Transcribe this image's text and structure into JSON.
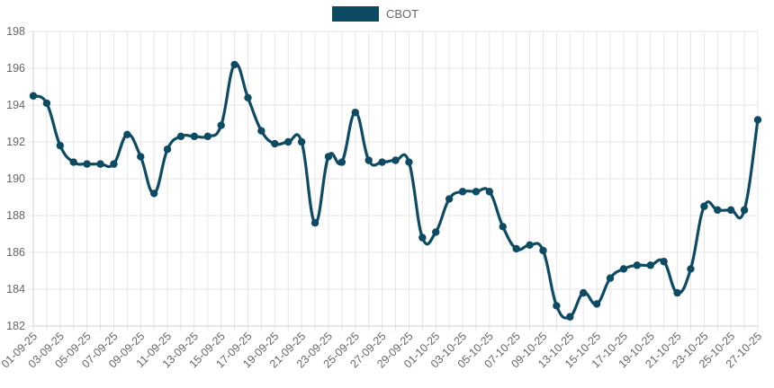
{
  "chart_data": {
    "type": "line",
    "legend": {
      "position": "top-center"
    },
    "grid": true,
    "ylim": [
      182,
      198
    ],
    "yticks": [
      182,
      184,
      186,
      188,
      190,
      192,
      194,
      196,
      198
    ],
    "tick_labels": [
      "01-09-25",
      "03-09-25",
      "05-09-25",
      "07-09-25",
      "09-09-25",
      "11-09-25",
      "13-09-25",
      "15-09-25",
      "17-09-25",
      "19-09-25",
      "21-09-25",
      "23-09-25",
      "25-09-25",
      "27-09-25",
      "29-09-25",
      "01-10-25",
      "03-10-25",
      "05-10-25",
      "07-10-25",
      "09-10-25",
      "13-10-25",
      "15-10-25",
      "17-10-25",
      "19-10-25",
      "21-10-25",
      "23-10-25",
      "25-10-25",
      "27-10-25"
    ],
    "colors": {
      "series": "#0d4a63"
    },
    "series": [
      {
        "name": "CBOT",
        "values": [
          194.5,
          194.1,
          191.8,
          190.9,
          190.8,
          190.8,
          190.8,
          192.4,
          191.2,
          189.2,
          191.6,
          192.3,
          192.3,
          192.3,
          192.9,
          196.2,
          194.4,
          192.6,
          191.9,
          192.0,
          192.0,
          187.6,
          191.2,
          190.9,
          193.6,
          191.0,
          190.9,
          191.0,
          190.9,
          186.8,
          187.1,
          188.9,
          189.3,
          189.3,
          189.3,
          187.4,
          186.2,
          186.4,
          186.1,
          183.1,
          182.5,
          183.8,
          183.2,
          184.6,
          185.1,
          185.3,
          185.3,
          185.5,
          183.8,
          185.1,
          188.5,
          188.3,
          188.3,
          188.3,
          193.2
        ]
      }
    ]
  }
}
